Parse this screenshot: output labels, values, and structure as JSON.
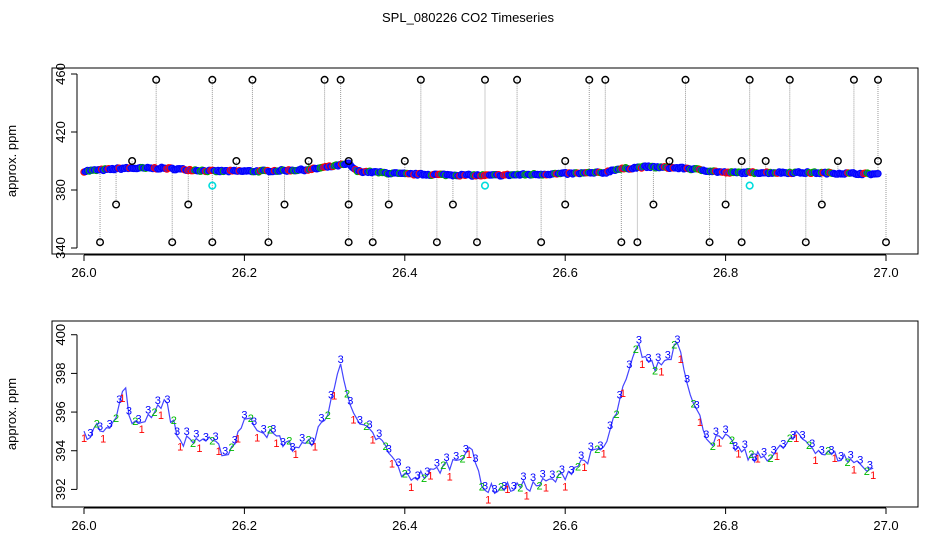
{
  "chart_data": [
    {
      "type": "scatter",
      "title": "SPL_080226  CO2 Timeseries",
      "ylabel": "approx. ppm",
      "xlim": [
        26.0,
        27.0
      ],
      "ylim": [
        340,
        460
      ],
      "x_ticks": [
        "26.0",
        "26.2",
        "26.4",
        "26.6",
        "26.8",
        "27.0"
      ],
      "y_ticks": [
        "340",
        "380",
        "420",
        "460"
      ],
      "baseline": {
        "x": [
          26.0,
          26.05,
          26.1,
          26.16,
          26.22,
          26.28,
          26.33,
          26.34,
          26.4,
          26.5,
          26.58,
          26.65,
          26.66,
          26.7,
          26.75,
          26.8,
          26.9,
          26.99
        ],
        "y": [
          393,
          395,
          395,
          393,
          393,
          394,
          398,
          393,
          391,
          390,
          391,
          392,
          394,
          396,
          395,
          392,
          392,
          391
        ]
      },
      "outliers_high": [
        26.09,
        26.16,
        26.21,
        26.3,
        26.32,
        26.42,
        26.5,
        26.54,
        26.63,
        26.65,
        26.75,
        26.83,
        26.88,
        26.96,
        26.99
      ],
      "outliers_low": [
        26.02,
        26.11,
        26.16,
        26.23,
        26.33,
        26.36,
        26.44,
        26.49,
        26.57,
        26.67,
        26.69,
        26.78,
        26.82,
        26.9,
        27.0
      ],
      "outliers_mid_low": [
        26.04,
        26.13,
        26.25,
        26.33,
        26.38,
        26.46,
        26.6,
        26.71,
        26.8,
        26.92
      ],
      "outliers_mid_high": [
        26.06,
        26.19,
        26.28,
        26.33,
        26.4,
        26.6,
        26.73,
        26.82,
        26.85,
        26.94,
        26.99
      ],
      "cyan_points": {
        "x": [
          26.16,
          26.5,
          26.83
        ],
        "y": [
          383,
          383,
          383
        ]
      }
    },
    {
      "type": "line",
      "ylabel": "approx. ppm",
      "xlim": [
        26.0,
        27.0
      ],
      "ylim": [
        391.4,
        400.4
      ],
      "x_ticks": [
        "26.0",
        "26.2",
        "26.4",
        "26.6",
        "26.8",
        "27.0"
      ],
      "y_ticks": [
        "392",
        "394",
        "396",
        "398",
        "400"
      ],
      "series_markers": [
        "1",
        "2",
        "3"
      ],
      "series_colors": [
        "#ff0000",
        "#00bb00",
        "#0000ff"
      ],
      "x": [
        26.0,
        26.02,
        26.04,
        26.05,
        26.06,
        26.08,
        26.1,
        26.12,
        26.15,
        26.18,
        26.2,
        26.23,
        26.26,
        26.28,
        26.3,
        26.32,
        26.34,
        26.37,
        26.4,
        26.43,
        26.46,
        26.48,
        26.5,
        26.53,
        26.56,
        26.59,
        26.62,
        26.65,
        26.67,
        26.69,
        26.71,
        26.73,
        26.74,
        26.76,
        26.78,
        26.8,
        26.83,
        26.86,
        26.89,
        26.92,
        26.95,
        26.98
      ],
      "values": [
        394.8,
        395.2,
        395.6,
        397.5,
        395.2,
        395.8,
        396.6,
        394.5,
        394.6,
        393.8,
        395.7,
        394.9,
        394.2,
        394.3,
        395.5,
        398.4,
        395.4,
        394.5,
        392.6,
        392.8,
        393.4,
        394.2,
        392.0,
        392.1,
        392.2,
        392.5,
        393.4,
        394.2,
        396.8,
        399.4,
        398.3,
        398.8,
        399.8,
        396.4,
        394.5,
        394.6,
        393.6,
        393.8,
        394.8,
        393.9,
        393.6,
        393.1
      ]
    }
  ]
}
